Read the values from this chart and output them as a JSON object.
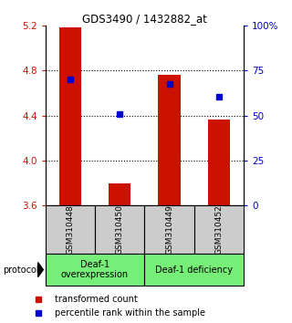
{
  "title": "GDS3490 / 1432882_at",
  "samples": [
    "GSM310448",
    "GSM310450",
    "GSM310449",
    "GSM310452"
  ],
  "bar_values": [
    5.19,
    3.79,
    4.76,
    4.36
  ],
  "bar_bottom": 3.6,
  "percentile_values": [
    4.72,
    4.41,
    4.68,
    4.57
  ],
  "ylim": [
    3.6,
    5.2
  ],
  "yticks_left": [
    3.6,
    4.0,
    4.4,
    4.8,
    5.2
  ],
  "yticks_right": [
    0,
    25,
    50,
    75,
    100
  ],
  "bar_color": "#cc1100",
  "percentile_color": "#0000cc",
  "group1_label": "Deaf-1\noverexpression",
  "group2_label": "Deaf-1 deficiency",
  "group_color": "#77ee77",
  "sample_bg_color": "#cccccc",
  "legend_bar_label": "transformed count",
  "legend_pct_label": "percentile rank within the sample",
  "protocol_label": "protocol"
}
